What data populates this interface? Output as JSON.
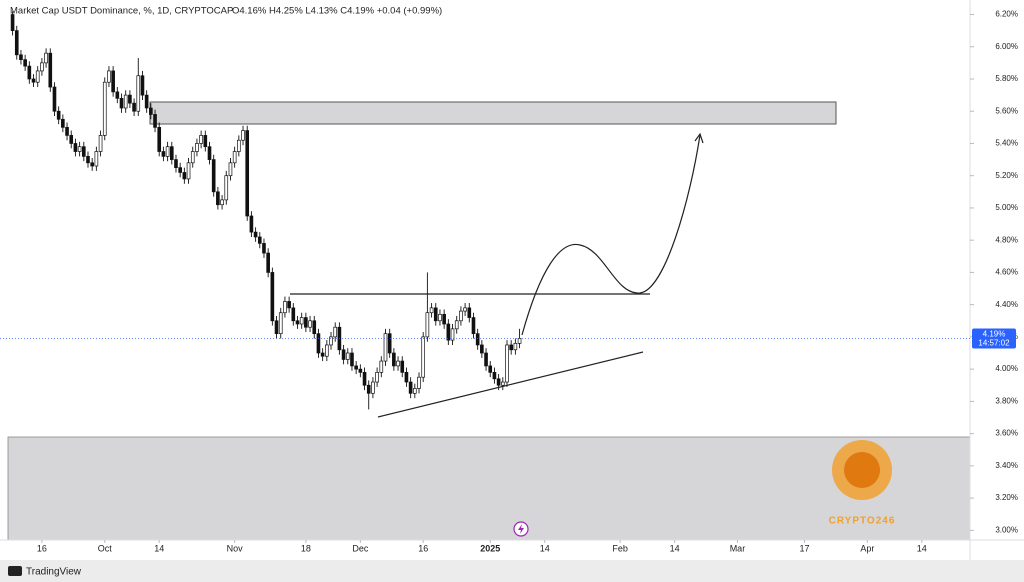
{
  "chart_data": {
    "type": "candlestick",
    "title": "Market Cap USDT Dominance, %, 1D, CRYPTOCAP",
    "ohlc_text": "O4.16%  H4.25%  L4.13%  C4.19%  +0.04 (+0.99%)",
    "last_price_label": "4.19%",
    "countdown": "14:57:02",
    "watermark": "CRYPTO246",
    "footer": "TradingView",
    "up_color": "#ffffff",
    "down_color": "#111111",
    "edge_color": "#111111",
    "xlim": [
      -3,
      228.5
    ],
    "ylim": [
      2.94,
      6.29
    ],
    "xticks": [
      {
        "value": 7,
        "label": "16"
      },
      {
        "value": 22,
        "label": "Oct"
      },
      {
        "value": 35,
        "label": "14"
      },
      {
        "value": 53,
        "label": "Nov"
      },
      {
        "value": 70,
        "label": "18"
      },
      {
        "value": 83,
        "label": "Dec"
      },
      {
        "value": 98,
        "label": "16"
      },
      {
        "value": 114,
        "label": "2025"
      },
      {
        "value": 127,
        "label": "14"
      },
      {
        "value": 145,
        "label": "Feb"
      },
      {
        "value": 158,
        "label": "14"
      },
      {
        "value": 173,
        "label": "Mar"
      },
      {
        "value": 189,
        "label": "17"
      },
      {
        "value": 204,
        "label": "Apr"
      },
      {
        "value": 217,
        "label": "14"
      }
    ],
    "yticks": [
      {
        "value": 6.2,
        "label": "6.20%"
      },
      {
        "value": 6.0,
        "label": "6.00%"
      },
      {
        "value": 5.8,
        "label": "5.80%"
      },
      {
        "value": 5.6,
        "label": "5.60%"
      },
      {
        "value": 5.4,
        "label": "5.40%"
      },
      {
        "value": 5.2,
        "label": "5.20%"
      },
      {
        "value": 5.0,
        "label": "5.00%"
      },
      {
        "value": 4.8,
        "label": "4.80%"
      },
      {
        "value": 4.6,
        "label": "4.60%"
      },
      {
        "value": 4.4,
        "label": "4.40%"
      },
      {
        "value": 4.2,
        "label": "4.20%"
      },
      {
        "value": 4.0,
        "label": "4.00%"
      },
      {
        "value": 3.8,
        "label": "3.80%"
      },
      {
        "value": 3.6,
        "label": "3.60%"
      },
      {
        "value": 3.4,
        "label": "3.40%"
      },
      {
        "value": 3.2,
        "label": "3.20%"
      },
      {
        "value": 3.0,
        "label": "3.00%"
      }
    ],
    "open": [
      6.2,
      6.1,
      5.95,
      5.92,
      5.88,
      5.8,
      5.78,
      5.85,
      5.9,
      5.96,
      5.75,
      5.6,
      5.55,
      5.5,
      5.45,
      5.4,
      5.35,
      5.38,
      5.32,
      5.28,
      5.26,
      5.35,
      5.45,
      5.78,
      5.85,
      5.72,
      5.68,
      5.62,
      5.7,
      5.65,
      5.6,
      5.82,
      5.7,
      5.62,
      5.58,
      5.5,
      5.35,
      5.32,
      5.38,
      5.3,
      5.25,
      5.22,
      5.18,
      5.28,
      5.35,
      5.4,
      5.45,
      5.38,
      5.3,
      5.1,
      5.02,
      5.05,
      5.2,
      5.28,
      5.35,
      5.42,
      5.48,
      4.95,
      4.85,
      4.82,
      4.78,
      4.72,
      4.6,
      4.3,
      4.22,
      4.35,
      4.42,
      4.38,
      4.3,
      4.28,
      4.32,
      4.26,
      4.3,
      4.22,
      4.1,
      4.08,
      4.15,
      4.2,
      4.26,
      4.12,
      4.06,
      4.1,
      4.02,
      4.0,
      3.98,
      3.9,
      3.85,
      3.92,
      3.98,
      4.05,
      4.22,
      4.1,
      4.02,
      4.05,
      3.98,
      3.92,
      3.85,
      3.88,
      3.95,
      4.2,
      4.35,
      4.38,
      4.3,
      4.34,
      4.28,
      4.18,
      4.25,
      4.3,
      4.36,
      4.38,
      4.32,
      4.22,
      4.15,
      4.1,
      4.02,
      3.98,
      3.94,
      3.9,
      3.92,
      4.15,
      4.12,
      4.16
    ],
    "high": [
      6.22,
      6.13,
      5.98,
      5.95,
      5.91,
      5.83,
      5.88,
      5.93,
      5.99,
      5.99,
      5.78,
      5.63,
      5.58,
      5.53,
      5.48,
      5.43,
      5.41,
      5.41,
      5.35,
      5.31,
      5.38,
      5.48,
      5.81,
      5.88,
      5.88,
      5.75,
      5.71,
      5.73,
      5.73,
      5.68,
      5.93,
      5.85,
      5.73,
      5.65,
      5.61,
      5.53,
      5.38,
      5.41,
      5.41,
      5.33,
      5.28,
      5.25,
      5.31,
      5.38,
      5.43,
      5.48,
      5.48,
      5.41,
      5.33,
      5.13,
      5.08,
      5.23,
      5.31,
      5.38,
      5.45,
      5.51,
      5.51,
      4.98,
      4.88,
      4.85,
      4.81,
      4.75,
      4.63,
      4.33,
      4.38,
      4.45,
      4.45,
      4.41,
      4.33,
      4.35,
      4.35,
      4.33,
      4.33,
      4.25,
      4.13,
      4.18,
      4.23,
      4.29,
      4.29,
      4.15,
      4.13,
      4.13,
      4.05,
      4.03,
      4.01,
      3.93,
      3.95,
      4.01,
      4.08,
      4.25,
      4.25,
      4.13,
      4.08,
      4.08,
      4.01,
      3.95,
      3.91,
      3.98,
      4.23,
      4.6,
      4.41,
      4.41,
      4.37,
      4.37,
      4.31,
      4.28,
      4.33,
      4.39,
      4.41,
      4.41,
      4.35,
      4.25,
      4.18,
      4.13,
      4.05,
      4.01,
      3.97,
      3.95,
      4.18,
      4.18,
      4.19,
      4.25
    ],
    "low": [
      6.07,
      5.92,
      5.89,
      5.85,
      5.77,
      5.75,
      5.75,
      5.82,
      5.87,
      5.72,
      5.57,
      5.52,
      5.47,
      5.42,
      5.37,
      5.32,
      5.32,
      5.29,
      5.25,
      5.23,
      5.23,
      5.32,
      5.42,
      5.75,
      5.69,
      5.65,
      5.59,
      5.59,
      5.62,
      5.57,
      5.57,
      5.67,
      5.59,
      5.55,
      5.47,
      5.32,
      5.29,
      5.29,
      5.27,
      5.22,
      5.19,
      5.15,
      5.15,
      5.25,
      5.32,
      5.37,
      5.35,
      5.27,
      5.07,
      4.99,
      4.99,
      5.02,
      5.17,
      5.25,
      5.32,
      5.39,
      4.92,
      4.82,
      4.79,
      4.75,
      4.69,
      4.57,
      4.27,
      4.19,
      4.19,
      4.32,
      4.35,
      4.27,
      4.25,
      4.25,
      4.23,
      4.23,
      4.19,
      4.07,
      4.05,
      4.05,
      4.12,
      4.17,
      4.09,
      4.03,
      4.03,
      3.99,
      3.97,
      3.95,
      3.87,
      3.75,
      3.82,
      3.89,
      3.95,
      4.02,
      4.07,
      3.99,
      3.99,
      3.95,
      3.89,
      3.82,
      3.82,
      3.85,
      3.92,
      4.17,
      4.32,
      4.27,
      4.27,
      4.25,
      4.15,
      4.15,
      4.22,
      4.27,
      4.33,
      4.29,
      4.19,
      4.12,
      4.07,
      3.99,
      3.95,
      3.91,
      3.87,
      3.87,
      3.89,
      4.09,
      4.09,
      4.13
    ],
    "close": [
      6.1,
      5.95,
      5.92,
      5.88,
      5.8,
      5.78,
      5.85,
      5.9,
      5.96,
      5.75,
      5.6,
      5.55,
      5.5,
      5.45,
      5.4,
      5.35,
      5.38,
      5.32,
      5.28,
      5.26,
      5.35,
      5.45,
      5.78,
      5.85,
      5.72,
      5.68,
      5.62,
      5.7,
      5.65,
      5.6,
      5.82,
      5.7,
      5.62,
      5.58,
      5.5,
      5.35,
      5.32,
      5.38,
      5.3,
      5.25,
      5.22,
      5.18,
      5.28,
      5.35,
      5.4,
      5.45,
      5.38,
      5.3,
      5.1,
      5.02,
      5.05,
      5.2,
      5.28,
      5.35,
      5.42,
      5.48,
      4.95,
      4.85,
      4.82,
      4.78,
      4.72,
      4.6,
      4.3,
      4.22,
      4.35,
      4.42,
      4.38,
      4.3,
      4.28,
      4.32,
      4.26,
      4.3,
      4.22,
      4.1,
      4.08,
      4.15,
      4.2,
      4.26,
      4.12,
      4.06,
      4.1,
      4.02,
      4.0,
      3.98,
      3.9,
      3.85,
      3.92,
      3.98,
      4.05,
      4.22,
      4.1,
      4.02,
      4.05,
      3.98,
      3.92,
      3.85,
      3.88,
      3.95,
      4.2,
      4.35,
      4.38,
      4.3,
      4.34,
      4.28,
      4.18,
      4.25,
      4.3,
      4.36,
      4.38,
      4.32,
      4.22,
      4.15,
      4.1,
      4.02,
      3.98,
      3.94,
      3.9,
      3.92,
      4.15,
      4.12,
      4.16,
      4.19
    ]
  }
}
